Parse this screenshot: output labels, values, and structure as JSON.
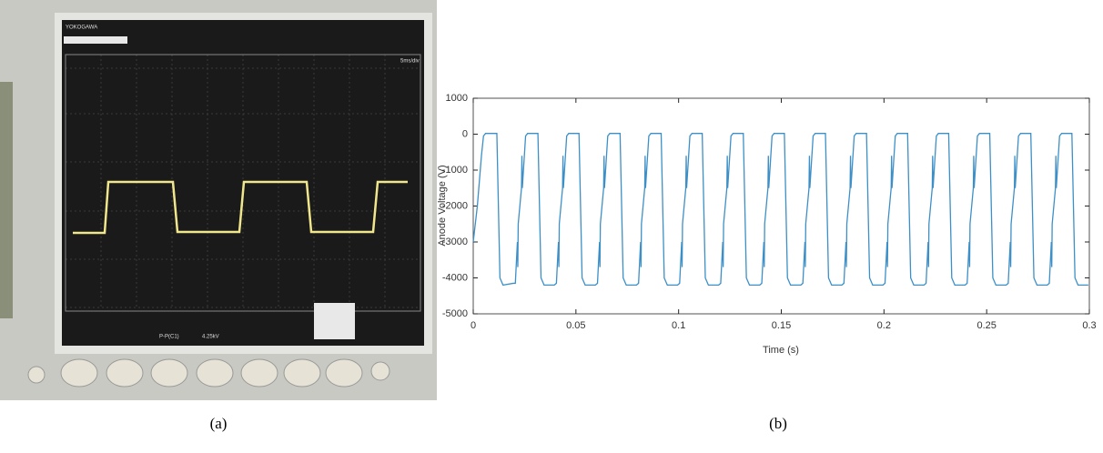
{
  "captions": [
    "(a)",
    "(b)"
  ],
  "photo": {
    "brand": "YOKOGAWA",
    "timebase": "5ms/div",
    "measure_name": "P-P(C1)",
    "measure_value": "4.25kV"
  },
  "chart_data": {
    "type": "line",
    "xlabel": "Time (s)",
    "ylabel": "Anode Voltage (V)",
    "xlim": [
      0,
      0.3
    ],
    "xticks": [
      0,
      0.05,
      0.1,
      0.15,
      0.2,
      0.25,
      0.3
    ],
    "ylim": [
      -5000,
      1000
    ],
    "yticks": [
      1000,
      0,
      -1000,
      -2000,
      -3000,
      -4000,
      -5000
    ],
    "series": [
      {
        "color": "#3d8fc7",
        "x": [
          0,
          0.002,
          0.004,
          0.005,
          0.006,
          0.0115,
          0.013,
          0.0145,
          0.0195,
          0.0205,
          0.0215,
          0.0217,
          0.0219,
          0.0235,
          0.0237,
          0.0239,
          0.0255,
          0.0265,
          0.0315,
          0.033,
          0.0345,
          0.0395,
          0.0405,
          0.0415,
          0.0417,
          0.0419,
          0.0435,
          0.0437,
          0.0439,
          0.0455,
          0.0465,
          0.0515,
          0.053,
          0.0545,
          0.0595,
          0.0605,
          0.0615,
          0.0617,
          0.0619,
          0.0635,
          0.0637,
          0.0639,
          0.0655,
          0.0665,
          0.0715,
          0.073,
          0.0745,
          0.0795,
          0.0805,
          0.0815,
          0.0817,
          0.0819,
          0.0835,
          0.0837,
          0.0839,
          0.0855,
          0.0865,
          0.0915,
          0.093,
          0.0945,
          0.0995,
          0.1005,
          0.1015,
          0.1017,
          0.1019,
          0.1035,
          0.1037,
          0.1039,
          0.1055,
          0.1065,
          0.1115,
          0.113,
          0.1145,
          0.1195,
          0.1205,
          0.1215,
          0.1217,
          0.1219,
          0.1235,
          0.1237,
          0.1239,
          0.1255,
          0.1265,
          0.1315,
          0.133,
          0.1345,
          0.1395,
          0.1405,
          0.1415,
          0.1417,
          0.1419,
          0.1435,
          0.1437,
          0.1439,
          0.1455,
          0.1465,
          0.1515,
          0.153,
          0.1545,
          0.1595,
          0.1605,
          0.1615,
          0.1617,
          0.1619,
          0.1635,
          0.1637,
          0.1639,
          0.1655,
          0.1665,
          0.1715,
          0.173,
          0.1745,
          0.1795,
          0.1805,
          0.1815,
          0.1817,
          0.1819,
          0.1835,
          0.1837,
          0.1839,
          0.1855,
          0.1865,
          0.1915,
          0.193,
          0.1945,
          0.1995,
          0.2005,
          0.2015,
          0.2017,
          0.2019,
          0.2035,
          0.2037,
          0.2039,
          0.2055,
          0.2065,
          0.2115,
          0.213,
          0.2145,
          0.2195,
          0.2205,
          0.2215,
          0.2217,
          0.2219,
          0.2235,
          0.2237,
          0.2239,
          0.2255,
          0.2265,
          0.2315,
          0.233,
          0.2345,
          0.2395,
          0.2405,
          0.2415,
          0.2417,
          0.2419,
          0.2435,
          0.2437,
          0.2439,
          0.2455,
          0.2465,
          0.2515,
          0.253,
          0.2545,
          0.2595,
          0.2605,
          0.2615,
          0.2617,
          0.2619,
          0.2635,
          0.2637,
          0.2639,
          0.2655,
          0.2665,
          0.2715,
          0.273,
          0.2745,
          0.2795,
          0.2805,
          0.2815,
          0.2817,
          0.2819,
          0.2835,
          0.2837,
          0.2839,
          0.2855,
          0.2865,
          0.2915,
          0.293,
          0.2945,
          0.2995
        ],
        "values": [
          -3000,
          -2000,
          -600,
          -50,
          20,
          20,
          -4000,
          -4200,
          -4150,
          -4150,
          -3000,
          -3700,
          -2500,
          -1500,
          -600,
          -1500,
          -50,
          20,
          20,
          -4000,
          -4200,
          -4200,
          -4150,
          -3000,
          -3700,
          -2500,
          -1500,
          -600,
          -1500,
          -50,
          20,
          20,
          -4000,
          -4200,
          -4200,
          -4150,
          -3000,
          -3700,
          -2500,
          -1500,
          -600,
          -1500,
          -50,
          20,
          20,
          -4000,
          -4200,
          -4200,
          -4150,
          -3000,
          -3700,
          -2500,
          -1500,
          -600,
          -1500,
          -50,
          20,
          20,
          -4000,
          -4200,
          -4200,
          -4150,
          -3000,
          -3700,
          -2500,
          -1500,
          -600,
          -1500,
          -50,
          20,
          20,
          -4000,
          -4200,
          -4200,
          -4150,
          -3000,
          -3700,
          -2500,
          -1500,
          -600,
          -1500,
          -50,
          20,
          20,
          -4000,
          -4200,
          -4200,
          -4150,
          -3000,
          -3700,
          -2500,
          -1500,
          -600,
          -1500,
          -50,
          20,
          20,
          -4000,
          -4200,
          -4200,
          -4150,
          -3000,
          -3700,
          -2500,
          -1500,
          -600,
          -1500,
          -50,
          20,
          20,
          -4000,
          -4200,
          -4200,
          -4150,
          -3000,
          -3700,
          -2500,
          -1500,
          -600,
          -1500,
          -50,
          20,
          20,
          -4000,
          -4200,
          -4200,
          -4150,
          -3000,
          -3700,
          -2500,
          -1500,
          -600,
          -1500,
          -50,
          20,
          20,
          -4000,
          -4200,
          -4200,
          -4150,
          -3000,
          -3700,
          -2500,
          -1500,
          -600,
          -1500,
          -50,
          20,
          20,
          -4000,
          -4200,
          -4200,
          -4150,
          -3000,
          -3700,
          -2500,
          -1500,
          -600,
          -1500,
          -50,
          20,
          20,
          -4000,
          -4200,
          -4200,
          -4150,
          -3000,
          -3700,
          -2500,
          -1500,
          -600,
          -1500,
          -50,
          20,
          20,
          -4000,
          -4200,
          -4200,
          -4150,
          -3000,
          -3700,
          -2500,
          -1500,
          -600,
          -1500,
          -50,
          20,
          20,
          -4000,
          -4200,
          -4200
        ]
      }
    ]
  }
}
